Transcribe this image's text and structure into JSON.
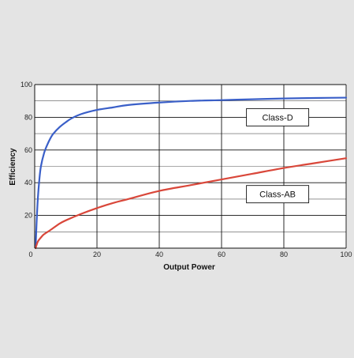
{
  "chart_data": {
    "type": "line",
    "title": "",
    "xlabel": "Output Power",
    "ylabel": "Efficiency",
    "xlim": [
      0,
      100
    ],
    "ylim": [
      0,
      100
    ],
    "x_ticks": [
      0,
      20,
      40,
      60,
      80,
      100
    ],
    "y_ticks": [
      20,
      40,
      60,
      80,
      100
    ],
    "grid": true,
    "series": [
      {
        "name": "Class-D",
        "color": "#3a5fc8",
        "x": [
          0.3,
          0.6,
          1,
          1.5,
          2,
          3,
          4,
          5,
          6,
          8,
          10,
          12,
          15,
          20,
          25,
          30,
          40,
          50,
          60,
          70,
          80,
          90,
          100
        ],
        "y": [
          0,
          15,
          30,
          42,
          50,
          58,
          63,
          67,
          70,
          74,
          77,
          79.5,
          82,
          84.5,
          86,
          87.5,
          89,
          90,
          90.5,
          91,
          91.5,
          91.8,
          92
        ]
      },
      {
        "name": "Class-AB",
        "color": "#d9473a",
        "x": [
          0.3,
          1,
          2,
          3,
          5,
          8,
          10,
          15,
          20,
          25,
          30,
          40,
          50,
          60,
          70,
          80,
          90,
          100
        ],
        "y": [
          0,
          4,
          6.5,
          8.5,
          11,
          15,
          17,
          21,
          24.5,
          27.5,
          30,
          35,
          38.5,
          42,
          45.5,
          49,
          52,
          55
        ]
      }
    ],
    "annotations": [
      {
        "text": "Class-D",
        "x": 68,
        "x2": 88,
        "y": 80
      },
      {
        "text": "Class-AB",
        "x": 68,
        "x2": 88,
        "y": 33
      }
    ]
  }
}
